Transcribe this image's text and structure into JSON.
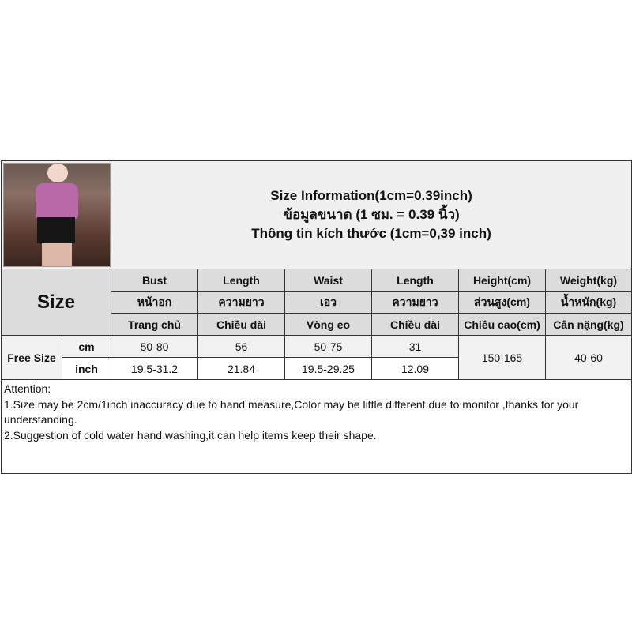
{
  "header": {
    "line1": "Size Information(1cm=0.39inch)",
    "line2": "ข้อมูลขนาด (1 ซม. = 0.39 นิ้ว)",
    "line3": "Thông tin kích thước (1cm=0,39 inch)"
  },
  "size_label": "Size",
  "columns": [
    {
      "en": "Bust",
      "th": "หน้าอก",
      "vi": "Trang chủ"
    },
    {
      "en": "Length",
      "th": "ความยาว",
      "vi": "Chiều dài"
    },
    {
      "en": "Waist",
      "th": "เอว",
      "vi": "Vòng eo"
    },
    {
      "en": "Length",
      "th": "ความยาว",
      "vi": "Chiều dài"
    },
    {
      "en": "Height(cm)",
      "th": "ส่วนสูง(cm)",
      "vi": "Chiều cao(cm)"
    },
    {
      "en": "Weight(kg)",
      "th": "น้ำหนัก(kg)",
      "vi": "Cân nặng(kg)"
    }
  ],
  "rows": {
    "size": "Free Size",
    "cm_label": "cm",
    "inch_label": "inch",
    "cm": [
      "50-80",
      "56",
      "50-75",
      "31"
    ],
    "inch": [
      "19.5-31.2",
      "21.84",
      "19.5-29.25",
      "12.09"
    ],
    "height": "150-165",
    "weight": "40-60"
  },
  "notes": {
    "title": "Attention:",
    "n1": "1.Size may be 2cm/1inch inaccuracy due to hand measure,Color may be little different due to monitor ,thanks for your understanding.",
    "n2": "2.Suggestion of cold water hand washing,it can help items keep their shape."
  }
}
